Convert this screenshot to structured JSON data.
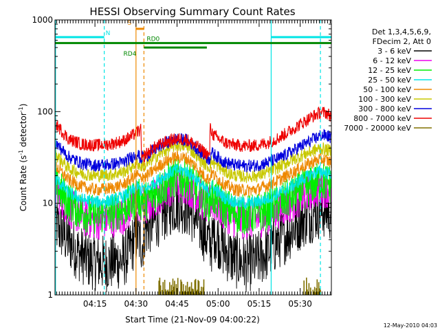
{
  "chart_data": {
    "type": "line",
    "title": "HESSI Observing Summary Count Rates",
    "xlabel": "Start Time (21-Nov-09 04:00:22)",
    "ylabel_main": "Count Rate (s",
    "ylabel_sup1": "-1",
    "ylabel_mid": " detector",
    "ylabel_sup2": "-1",
    "ylabel_end": ")",
    "x_unit": "minutes after 04:00:22",
    "xlim": [
      0,
      101
    ],
    "ylim": [
      1,
      1000
    ],
    "y_scale": "log",
    "x_ticks": [
      {
        "label": "04:15",
        "value": 14.6
      },
      {
        "label": "04:30",
        "value": 29.6
      },
      {
        "label": "04:45",
        "value": 44.6
      },
      {
        "label": "05:00",
        "value": 59.6
      },
      {
        "label": "05:15",
        "value": 74.6
      },
      {
        "label": "05:30",
        "value": 89.6
      }
    ],
    "y_ticks": [
      {
        "label": "1",
        "value": 1
      },
      {
        "label": "10",
        "value": 10
      },
      {
        "label": "100",
        "value": 100
      },
      {
        "label": "1000",
        "value": 1000
      }
    ],
    "legend": {
      "header1": "Det 1,3,4,5,6,9,",
      "header2": "FDecim 2, Att 0",
      "placement": "right, outside plot"
    },
    "series": [
      {
        "name": "3 - 6 keV",
        "color": "#000000",
        "x": [
          0,
          8,
          12,
          18,
          25,
          27,
          30,
          32,
          32.5,
          34,
          38,
          42,
          45,
          48,
          51,
          54,
          56,
          57.5,
          58,
          62,
          66,
          70,
          74,
          78,
          82,
          86,
          90,
          95,
          98,
          101
        ],
        "values": [
          6,
          3,
          2.4,
          2.2,
          2.4,
          3,
          4.5,
          3.5,
          5,
          5.5,
          7,
          9,
          10,
          9,
          7,
          5,
          4,
          3.5,
          5,
          3,
          2.4,
          2.2,
          2.4,
          3,
          4,
          5,
          6.5,
          8,
          8.5,
          8
        ]
      },
      {
        "name": "6 - 12 keV",
        "color": "#ee00ee",
        "x": [
          0,
          5,
          10,
          15,
          20,
          25,
          28,
          30,
          31.5,
          32,
          33,
          36,
          40,
          44,
          48,
          51,
          54,
          56.5,
          57,
          62,
          66,
          70,
          74,
          78,
          82,
          86,
          90,
          94,
          97,
          99,
          101
        ],
        "values": [
          14,
          9,
          7,
          6.5,
          6.8,
          7.5,
          8.8,
          10.5,
          9.2,
          10,
          9,
          11,
          14,
          16.5,
          16,
          13.5,
          10.5,
          9,
          11,
          8,
          6.8,
          6.5,
          6.8,
          7.5,
          8.8,
          10,
          12,
          14,
          15,
          14.6,
          14
        ]
      },
      {
        "name": "12 - 25 keV",
        "color": "#00ee00",
        "x": [
          0,
          5,
          10,
          15,
          20,
          25,
          28,
          30,
          31.5,
          32,
          33,
          36,
          40,
          44,
          48,
          51,
          54,
          56.5,
          57,
          62,
          66,
          70,
          74,
          78,
          82,
          86,
          90,
          94,
          97,
          99,
          101
        ],
        "values": [
          16,
          10.5,
          8,
          7.5,
          7.8,
          8.8,
          10.2,
          12,
          10.5,
          11.5,
          10.5,
          12.5,
          16,
          19,
          18.5,
          15.5,
          12,
          10.3,
          12.5,
          9,
          7.8,
          7.5,
          7.8,
          8.6,
          10,
          11.5,
          14,
          16,
          17.5,
          17,
          16.5
        ]
      },
      {
        "name": "25 - 50 keV",
        "color": "#00e5e5",
        "x": [
          0,
          5,
          10,
          15,
          20,
          25,
          28,
          30,
          31.5,
          32,
          33,
          36,
          40,
          44,
          48,
          51,
          54,
          56.5,
          57,
          62,
          66,
          70,
          74,
          78,
          82,
          86,
          90,
          94,
          97,
          99,
          101
        ],
        "values": [
          19,
          13,
          11,
          10.3,
          10.6,
          11.8,
          13.5,
          15.5,
          13.5,
          15,
          13.8,
          16.5,
          20,
          23,
          22.5,
          19,
          15,
          13,
          15.5,
          11.5,
          10.3,
          10,
          10.3,
          11.3,
          13,
          15,
          18,
          21,
          22.5,
          21.5,
          21
        ]
      },
      {
        "name": "50 - 100 keV",
        "color": "#ee8800",
        "x": [
          0,
          5,
          10,
          15,
          20,
          25,
          28,
          30,
          31.5,
          32,
          33,
          36,
          40,
          44,
          48,
          51,
          54,
          56.5,
          57,
          62,
          66,
          70,
          74,
          78,
          82,
          86,
          90,
          94,
          97,
          99,
          101
        ],
        "values": [
          26,
          18,
          15,
          14,
          14.5,
          16,
          18.5,
          21,
          18,
          20.5,
          19,
          23,
          28,
          32,
          31,
          26,
          20.5,
          18,
          21.5,
          16,
          14,
          13.8,
          14.2,
          15.8,
          18,
          21,
          24.5,
          28,
          30.5,
          29.5,
          28
        ]
      },
      {
        "name": "100 - 300 keV",
        "color": "#c8c800",
        "x": [
          0,
          5,
          10,
          15,
          20,
          25,
          28,
          30,
          31.5,
          32,
          33,
          36,
          40,
          44,
          48,
          51,
          54,
          56.5,
          57,
          62,
          66,
          70,
          74,
          78,
          82,
          86,
          90,
          94,
          97,
          99,
          101
        ],
        "values": [
          35,
          24,
          21,
          20,
          20.5,
          22,
          25,
          28,
          24.5,
          27,
          25.5,
          31,
          37,
          43,
          42,
          35,
          28,
          24.5,
          29,
          22,
          20,
          19.5,
          20,
          22,
          25,
          29,
          33,
          37,
          40,
          38.5,
          37
        ]
      },
      {
        "name": "300 - 800 keV",
        "color": "#0000dd",
        "x": [
          0,
          5,
          10,
          15,
          20,
          25,
          28,
          30,
          31.5,
          32,
          33,
          36,
          40,
          44,
          48,
          51,
          54,
          56.5,
          57,
          62,
          66,
          70,
          74,
          78,
          82,
          86,
          90,
          94,
          97,
          99,
          101
        ],
        "values": [
          46,
          32,
          27,
          26,
          26.5,
          28,
          31.5,
          35,
          30,
          33,
          32,
          38,
          45,
          50,
          49,
          42,
          34,
          30,
          36,
          28,
          26,
          25.5,
          26,
          28,
          31,
          36,
          42,
          49,
          55,
          55,
          52
        ]
      },
      {
        "name": "800 - 7000 keV",
        "color": "#ee0000",
        "x": [
          0,
          5,
          10,
          15,
          20,
          25,
          28,
          30,
          31.5,
          31.6,
          33,
          36,
          40,
          44,
          48,
          51,
          54,
          56,
          56.5,
          56.6,
          58,
          62,
          66,
          70,
          74,
          78,
          82,
          86,
          90,
          94,
          97,
          99,
          101
        ],
        "values": [
          75,
          50,
          44,
          43,
          44,
          48,
          54,
          60,
          63,
          28,
          34,
          40,
          46,
          50,
          50,
          44,
          37,
          34,
          31,
          66,
          55,
          46,
          43,
          42,
          43,
          46,
          52,
          62,
          74,
          88,
          98,
          97,
          90
        ]
      },
      {
        "name": "7000 - 20000 keV",
        "color": "#807000",
        "x": [],
        "values": []
      }
    ],
    "bursts_7000_20000": [
      [
        38,
        45
      ],
      [
        46,
        55
      ],
      [
        91,
        97
      ]
    ],
    "flags": [
      {
        "label": "N",
        "color": "#00e5e5",
        "segments": [
          [
            0,
            18
          ]
        ],
        "level": 650
      },
      {
        "label": "N",
        "color": "#00e5e5",
        "segments": [
          [
            79,
            101
          ]
        ],
        "level": 650
      },
      {
        "label": "S",
        "color": "#ee8800",
        "segments": [
          [
            29.6,
            32.5
          ]
        ],
        "level": 800
      },
      {
        "label": "RD0",
        "color": "#008800",
        "segments": [
          [
            0,
            101
          ]
        ],
        "level": 560
      },
      {
        "label": "RD4",
        "color": "#008800",
        "segments": [
          [
            32.5,
            55.5
          ]
        ],
        "level": 500
      }
    ],
    "verticals": [
      {
        "x": 18.0,
        "color": "#00e5e5",
        "style": "dash"
      },
      {
        "x": 29.6,
        "color": "#ee8800",
        "style": "solid"
      },
      {
        "x": 32.5,
        "color": "#ee8800",
        "style": "dash"
      },
      {
        "x": 79.0,
        "color": "#00e5e5",
        "style": "solid"
      },
      {
        "x": 97.0,
        "color": "#00e5e5",
        "style": "dash"
      },
      {
        "x": 0.2,
        "color": "#00e5e5",
        "style": "solid"
      }
    ],
    "footer_date": "12-May-2010 04:03"
  }
}
